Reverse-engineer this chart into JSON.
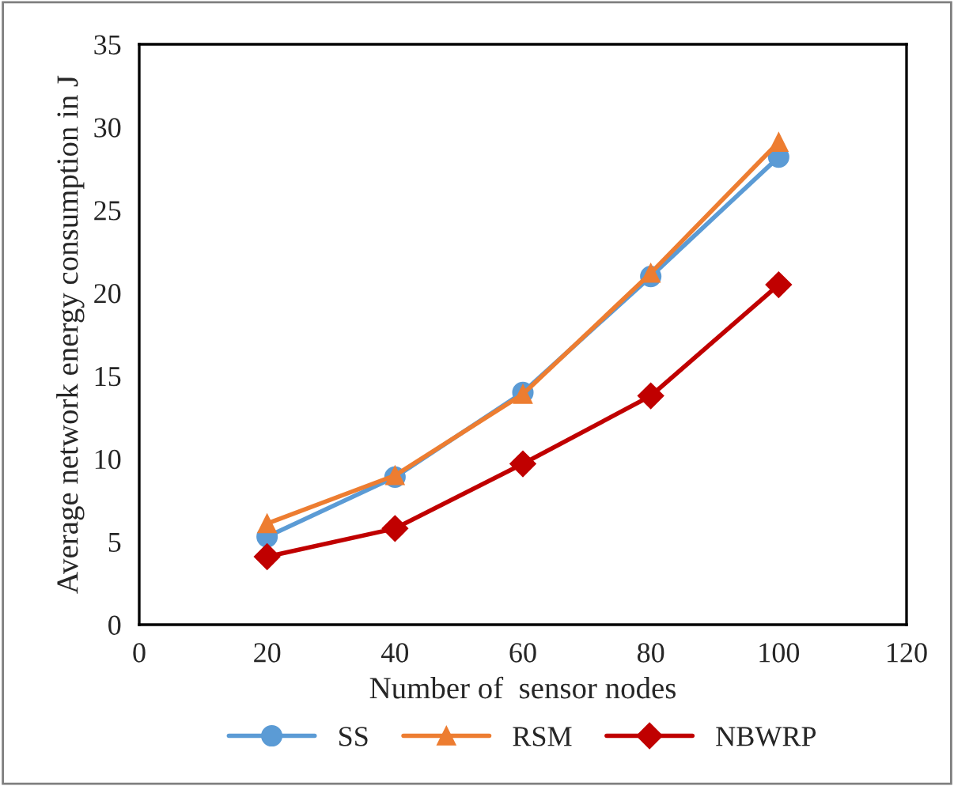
{
  "chart_data": {
    "type": "line",
    "xlabel": "Number of  sensor nodes",
    "ylabel": "Average network energy consumption in J",
    "x": [
      20,
      40,
      60,
      80,
      100
    ],
    "series": [
      {
        "name": "SS",
        "color": "#5b9bd5",
        "marker": "circle",
        "values": [
          5.3,
          8.9,
          14.0,
          21.0,
          28.2
        ]
      },
      {
        "name": "RSM",
        "color": "#ed7d31",
        "marker": "triangle",
        "values": [
          6.1,
          9.0,
          13.9,
          21.2,
          29.1
        ]
      },
      {
        "name": "NBWRP",
        "color": "#c00000",
        "marker": "diamond",
        "values": [
          4.1,
          5.8,
          9.7,
          13.8,
          20.5
        ]
      }
    ],
    "xlim": [
      0,
      120
    ],
    "xticks": [
      0,
      20,
      40,
      60,
      80,
      100,
      120
    ],
    "ylim": [
      0,
      35
    ],
    "yticks": [
      0,
      5,
      10,
      15,
      20,
      25,
      30,
      35
    ],
    "grid": false,
    "legend": "bottom"
  }
}
